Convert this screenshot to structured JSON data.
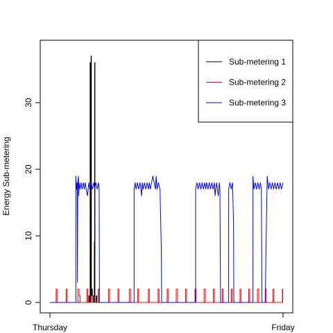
{
  "chart_data": {
    "type": "line",
    "title": "",
    "xlabel": "",
    "ylabel": "Energy Sub-metering",
    "xlim": [
      0,
      1440
    ],
    "ylim": [
      0,
      38
    ],
    "x_ticks": [
      {
        "value": 0,
        "label": "Thursday"
      },
      {
        "value": 1440,
        "label": "Friday"
      }
    ],
    "y_ticks": [
      0,
      10,
      20,
      30
    ],
    "legend_position": "top-right",
    "grid": false,
    "series": [
      {
        "name": "Sub-metering 1",
        "color": "#000000",
        "points": [
          [
            0,
            0
          ],
          [
            240,
            0
          ],
          [
            240,
            1
          ],
          [
            245,
            1
          ],
          [
            245,
            0
          ],
          [
            248,
            0
          ],
          [
            248,
            36
          ],
          [
            250,
            36
          ],
          [
            250,
            1
          ],
          [
            252,
            1
          ],
          [
            252,
            0
          ],
          [
            254,
            0
          ],
          [
            254,
            37
          ],
          [
            256,
            37
          ],
          [
            256,
            1
          ],
          [
            260,
            1
          ],
          [
            260,
            2
          ],
          [
            262,
            2
          ],
          [
            262,
            1
          ],
          [
            268,
            1
          ],
          [
            268,
            0
          ],
          [
            274,
            0
          ],
          [
            274,
            9
          ],
          [
            276,
            9
          ],
          [
            276,
            36
          ],
          [
            278,
            36
          ],
          [
            278,
            0
          ],
          [
            286,
            0
          ],
          [
            286,
            1
          ],
          [
            290,
            1
          ],
          [
            290,
            0
          ],
          [
            1440,
            0
          ]
        ]
      },
      {
        "name": "Sub-metering 2",
        "color": "#ff0000",
        "points": [
          [
            0,
            0
          ],
          [
            38,
            0
          ],
          [
            38,
            2
          ],
          [
            44,
            2
          ],
          [
            44,
            0
          ],
          [
            100,
            0
          ],
          [
            100,
            2
          ],
          [
            106,
            2
          ],
          [
            106,
            0
          ],
          [
            172,
            0
          ],
          [
            172,
            2
          ],
          [
            180,
            2
          ],
          [
            180,
            1
          ],
          [
            186,
            1
          ],
          [
            186,
            0
          ],
          [
            228,
            0
          ],
          [
            228,
            2
          ],
          [
            234,
            2
          ],
          [
            234,
            0
          ],
          [
            252,
            0
          ],
          [
            252,
            1
          ],
          [
            262,
            1
          ],
          [
            262,
            0
          ],
          [
            298,
            0
          ],
          [
            298,
            2
          ],
          [
            304,
            2
          ],
          [
            304,
            0
          ],
          [
            362,
            0
          ],
          [
            362,
            2
          ],
          [
            368,
            2
          ],
          [
            368,
            0
          ],
          [
            420,
            0
          ],
          [
            420,
            2
          ],
          [
            426,
            2
          ],
          [
            426,
            0
          ],
          [
            490,
            0
          ],
          [
            490,
            2
          ],
          [
            498,
            2
          ],
          [
            498,
            0
          ],
          [
            542,
            0
          ],
          [
            542,
            2
          ],
          [
            548,
            2
          ],
          [
            548,
            0
          ],
          [
            608,
            0
          ],
          [
            608,
            2
          ],
          [
            614,
            2
          ],
          [
            614,
            0
          ],
          [
            668,
            0
          ],
          [
            668,
            2
          ],
          [
            674,
            2
          ],
          [
            674,
            0
          ],
          [
            724,
            0
          ],
          [
            724,
            2
          ],
          [
            730,
            2
          ],
          [
            730,
            0
          ],
          [
            780,
            0
          ],
          [
            780,
            2
          ],
          [
            788,
            2
          ],
          [
            788,
            0
          ],
          [
            838,
            0
          ],
          [
            838,
            2
          ],
          [
            844,
            2
          ],
          [
            844,
            0
          ],
          [
            896,
            0
          ],
          [
            896,
            2
          ],
          [
            902,
            2
          ],
          [
            902,
            0
          ],
          [
            952,
            0
          ],
          [
            952,
            2
          ],
          [
            960,
            2
          ],
          [
            960,
            0
          ],
          [
            1010,
            0
          ],
          [
            1010,
            2
          ],
          [
            1016,
            2
          ],
          [
            1016,
            0
          ],
          [
            1064,
            0
          ],
          [
            1064,
            2
          ],
          [
            1070,
            2
          ],
          [
            1070,
            0
          ],
          [
            1120,
            0
          ],
          [
            1120,
            2
          ],
          [
            1126,
            2
          ],
          [
            1126,
            0
          ],
          [
            1174,
            0
          ],
          [
            1174,
            2
          ],
          [
            1180,
            2
          ],
          [
            1180,
            0
          ],
          [
            1228,
            0
          ],
          [
            1228,
            2
          ],
          [
            1234,
            2
          ],
          [
            1234,
            0
          ],
          [
            1282,
            0
          ],
          [
            1282,
            2
          ],
          [
            1290,
            2
          ],
          [
            1290,
            0
          ],
          [
            1330,
            0
          ],
          [
            1330,
            2
          ],
          [
            1336,
            2
          ],
          [
            1336,
            0
          ],
          [
            1378,
            0
          ],
          [
            1378,
            2
          ],
          [
            1384,
            2
          ],
          [
            1384,
            0
          ],
          [
            1436,
            0
          ],
          [
            1436,
            2
          ],
          [
            1438,
            2
          ],
          [
            1438,
            0
          ]
        ]
      },
      {
        "name": "Sub-metering 3",
        "color": "#0000ff",
        "points": [
          [
            0,
            0
          ],
          [
            160,
            0
          ],
          [
            160,
            19
          ],
          [
            164,
            17
          ],
          [
            168,
            18
          ],
          [
            170,
            3
          ],
          [
            172,
            18
          ],
          [
            176,
            19
          ],
          [
            178,
            16
          ],
          [
            180,
            18
          ],
          [
            186,
            17
          ],
          [
            192,
            18
          ],
          [
            198,
            17
          ],
          [
            206,
            18
          ],
          [
            212,
            17
          ],
          [
            218,
            18
          ],
          [
            224,
            17
          ],
          [
            232,
            16
          ],
          [
            240,
            18
          ],
          [
            246,
            17
          ],
          [
            254,
            18
          ],
          [
            262,
            17
          ],
          [
            270,
            18
          ],
          [
            276,
            17
          ],
          [
            284,
            18
          ],
          [
            292,
            17
          ],
          [
            300,
            18
          ],
          [
            304,
            17
          ],
          [
            306,
            0
          ],
          [
            520,
            0
          ],
          [
            520,
            17
          ],
          [
            526,
            18
          ],
          [
            532,
            17
          ],
          [
            540,
            18
          ],
          [
            548,
            17
          ],
          [
            556,
            18
          ],
          [
            562,
            17
          ],
          [
            566,
            16
          ],
          [
            570,
            18
          ],
          [
            576,
            17
          ],
          [
            584,
            18
          ],
          [
            592,
            17
          ],
          [
            600,
            18
          ],
          [
            608,
            17
          ],
          [
            614,
            18
          ],
          [
            620,
            17
          ],
          [
            628,
            18
          ],
          [
            636,
            19
          ],
          [
            644,
            18
          ],
          [
            652,
            17
          ],
          [
            656,
            19
          ],
          [
            662,
            17
          ],
          [
            670,
            18
          ],
          [
            680,
            17
          ],
          [
            688,
            8
          ],
          [
            690,
            0
          ],
          [
            900,
            0
          ],
          [
            900,
            17
          ],
          [
            908,
            18
          ],
          [
            916,
            17
          ],
          [
            924,
            18
          ],
          [
            932,
            17
          ],
          [
            940,
            18
          ],
          [
            948,
            17
          ],
          [
            956,
            18
          ],
          [
            962,
            17
          ],
          [
            968,
            18
          ],
          [
            976,
            17
          ],
          [
            984,
            18
          ],
          [
            992,
            17
          ],
          [
            1000,
            18
          ],
          [
            1008,
            17
          ],
          [
            1016,
            18
          ],
          [
            1020,
            16
          ],
          [
            1024,
            17
          ],
          [
            1030,
            18
          ],
          [
            1034,
            17
          ],
          [
            1040,
            16
          ],
          [
            1046,
            18
          ],
          [
            1050,
            17
          ],
          [
            1054,
            0
          ],
          [
            1104,
            0
          ],
          [
            1104,
            17
          ],
          [
            1112,
            18
          ],
          [
            1120,
            17
          ],
          [
            1128,
            18
          ],
          [
            1134,
            12
          ],
          [
            1136,
            0
          ],
          [
            1254,
            0
          ],
          [
            1254,
            19
          ],
          [
            1260,
            17
          ],
          [
            1268,
            18
          ],
          [
            1276,
            17
          ],
          [
            1284,
            18
          ],
          [
            1292,
            17
          ],
          [
            1300,
            18
          ],
          [
            1306,
            17
          ],
          [
            1310,
            0
          ],
          [
            1330,
            0
          ],
          [
            1336,
            10
          ],
          [
            1342,
            19
          ],
          [
            1350,
            17
          ],
          [
            1358,
            18
          ],
          [
            1366,
            17
          ],
          [
            1374,
            18
          ],
          [
            1382,
            17
          ],
          [
            1390,
            18
          ],
          [
            1398,
            17
          ],
          [
            1406,
            18
          ],
          [
            1414,
            17
          ],
          [
            1422,
            18
          ],
          [
            1430,
            17
          ],
          [
            1440,
            18
          ]
        ]
      }
    ]
  }
}
